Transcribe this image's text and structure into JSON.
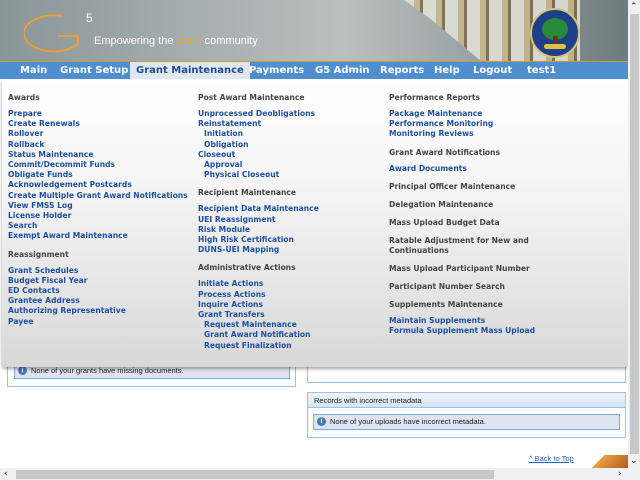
{
  "header": {
    "logo_text": "G5",
    "tagline_pre": "Empowering the ",
    "tagline_accent": "grant",
    "tagline_post": " community",
    "accent_color": "#f0a030"
  },
  "nav": {
    "items": [
      "Main",
      "Grant Setup",
      "Grant Maintenance",
      "Payments",
      "G5 Admin",
      "Reports",
      "Help",
      "Logout",
      "test1"
    ],
    "active": "Grant Maintenance",
    "color": "#4f8fd0"
  },
  "menu": {
    "col1": [
      {
        "type": "h",
        "label": "Awards"
      },
      {
        "type": "a",
        "label": "Prepare"
      },
      {
        "type": "a",
        "label": "Create Renewals"
      },
      {
        "type": "a",
        "label": "Rollover"
      },
      {
        "type": "a",
        "label": "Rollback"
      },
      {
        "type": "a",
        "label": "Status Maintenance"
      },
      {
        "type": "a",
        "label": "Commit/Decommit Funds"
      },
      {
        "type": "a",
        "label": "Obligate Funds"
      },
      {
        "type": "a",
        "label": "Acknowledgement Postcards"
      },
      {
        "type": "a",
        "label": "Create Multiple Grant Award Notifications"
      },
      {
        "type": "a",
        "label": "View FMSS Log"
      },
      {
        "type": "a",
        "label": "License Holder"
      },
      {
        "type": "a",
        "label": "Search"
      },
      {
        "type": "a",
        "label": "Exempt Award Maintenance"
      },
      {
        "type": "h",
        "label": "Reassignment"
      },
      {
        "type": "a",
        "label": "Grant Schedules"
      },
      {
        "type": "a",
        "label": "Budget Fiscal Year"
      },
      {
        "type": "a",
        "label": "ED Contacts"
      },
      {
        "type": "a",
        "label": "Grantee Address"
      },
      {
        "type": "a",
        "label": "Authorizing Representative"
      },
      {
        "type": "a",
        "label": "Payee"
      }
    ],
    "col2": [
      {
        "type": "h",
        "label": "Post Award Maintenance"
      },
      {
        "type": "a",
        "label": "Unprocessed Deobligations"
      },
      {
        "type": "a",
        "label": "Reinstatement"
      },
      {
        "type": "sub",
        "label": "Initiation"
      },
      {
        "type": "sub",
        "label": "Obligation"
      },
      {
        "type": "a",
        "label": "Closeout"
      },
      {
        "type": "sub",
        "label": "Approval"
      },
      {
        "type": "sub",
        "label": "Physical Closeout"
      },
      {
        "type": "h",
        "label": "Recipient Maintenance"
      },
      {
        "type": "a",
        "label": "Recipient Data Maintenance"
      },
      {
        "type": "a",
        "label": "UEI Reassignment"
      },
      {
        "type": "a",
        "label": "Risk Module"
      },
      {
        "type": "a",
        "label": "High Risk Certification"
      },
      {
        "type": "a",
        "label": "DUNS-UEI Mapping"
      },
      {
        "type": "h",
        "label": "Administrative Actions"
      },
      {
        "type": "a",
        "label": "Initiate Actions"
      },
      {
        "type": "a",
        "label": "Process Actions"
      },
      {
        "type": "a",
        "label": "Inquire Actions"
      },
      {
        "type": "a",
        "label": "Grant Transfers"
      },
      {
        "type": "sub",
        "label": "Request Maintenance"
      },
      {
        "type": "sub",
        "label": "Grant Award Notification"
      },
      {
        "type": "sub",
        "label": "Request Finalization"
      }
    ],
    "col3": [
      {
        "type": "h",
        "label": "Performance Reports"
      },
      {
        "type": "a",
        "label": "Package Maintenance"
      },
      {
        "type": "a",
        "label": "Performance Monitoring"
      },
      {
        "type": "a",
        "label": "Monitoring Reviews"
      },
      {
        "type": "h",
        "label": "Grant Award Notifications"
      },
      {
        "type": "a",
        "label": "Award Documents"
      },
      {
        "type": "h",
        "label": "Principal Officer Maintenance"
      },
      {
        "type": "h",
        "label": "Delegation Maintenance"
      },
      {
        "type": "h",
        "label": "Mass Upload Budget Data"
      },
      {
        "type": "h",
        "label": "Ratable Adjustment for New and Continuations"
      },
      {
        "type": "h",
        "label": "Mass Upload Participant Number"
      },
      {
        "type": "h",
        "label": "Participant Number Search"
      },
      {
        "type": "h",
        "label": "Supplements Maintenance"
      },
      {
        "type": "a",
        "label": "Maintain Supplements"
      },
      {
        "type": "a",
        "label": "Formula Supplement Mass Upload"
      }
    ]
  },
  "content": {
    "missing_docs_msg": "None of your grants have missing documents.",
    "metadata_title": "Records with incorrect metadata",
    "metadata_msg": "None of your uploads have incorrect metadata.",
    "back_to_top": "^ Back to Top"
  }
}
